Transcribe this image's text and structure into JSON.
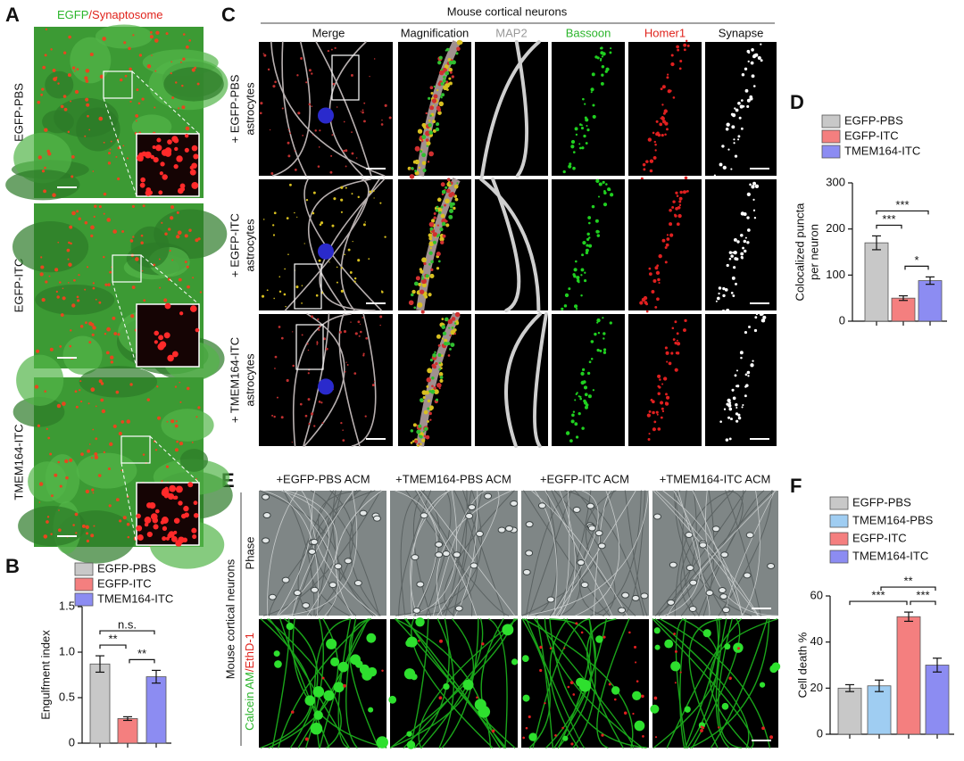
{
  "panel_a": {
    "label": "A",
    "title": [
      "EGFP",
      "/Synaptosome"
    ],
    "rows": [
      "EGFP-PBS",
      "EGFP-ITC",
      "TMEM164-ITC"
    ]
  },
  "panel_c": {
    "label": "C",
    "header": "Mouse cortical neurons",
    "columns": [
      "Merge",
      "Magnification",
      "MAP2",
      "Bassoon",
      "Homer1",
      "Synapse"
    ],
    "rows": [
      [
        "+ EGFP-PBS",
        "astrocytes"
      ],
      [
        "+ EGFP-ITC",
        "astrocytes"
      ],
      [
        "+ TMEM164-ITC",
        "astrocytes"
      ]
    ]
  },
  "panel_e": {
    "label": "E",
    "columns": [
      "+EGFP-PBS ACM",
      "+TMEM164-PBS ACM",
      "+EGFP-ITC ACM",
      "+TMEM164-ITC ACM"
    ],
    "rows": [
      "Phase",
      [
        "Calcein AM",
        "/EthD-1"
      ]
    ],
    "side_label": "Mouse cortical neurons"
  },
  "chart_data": [
    {
      "type": "bar",
      "panel": "B",
      "ylabel": [
        "Engulfment index"
      ],
      "categories": [
        "EGFP-PBS",
        "EGFP-ITC",
        "TMEM164-ITC"
      ],
      "values": [
        0.87,
        0.27,
        0.73
      ],
      "errors": [
        0.09,
        0.02,
        0.07
      ],
      "colors": [
        "#c8c8c8",
        "#f47f7f",
        "#8c8cf2"
      ],
      "ylim": [
        0,
        1.5
      ],
      "yticks": [
        0,
        0.5,
        {
          "value": 1,
          "label": "1.0"
        },
        1.5
      ],
      "comparisons": [
        {
          "label": "**",
          "pair": [
            "EGFP-PBS",
            "EGFP-ITC"
          ]
        },
        {
          "label": "**",
          "pair": [
            "EGFP-ITC",
            "TMEM164-ITC"
          ]
        },
        {
          "label": "n.s.",
          "pair": [
            "EGFP-PBS",
            "TMEM164-ITC"
          ]
        }
      ]
    },
    {
      "type": "bar",
      "panel": "D",
      "ylabel": [
        "Colocalized puncta",
        "per neuron"
      ],
      "categories": [
        "EGFP-PBS",
        "EGFP-ITC",
        "TMEM164-ITC"
      ],
      "values": [
        170,
        50,
        88
      ],
      "errors": [
        15,
        5,
        8
      ],
      "colors": [
        "#c8c8c8",
        "#f47f7f",
        "#8c8cf2"
      ],
      "ylim": [
        0,
        300
      ],
      "yticks": [
        0,
        100,
        200,
        300
      ],
      "comparisons": [
        {
          "label": "***",
          "pair": [
            "EGFP-PBS",
            "EGFP-ITC"
          ]
        },
        {
          "label": "*",
          "pair": [
            "EGFP-ITC",
            "TMEM164-ITC"
          ]
        },
        {
          "label": "***",
          "pair": [
            "EGFP-PBS",
            "TMEM164-ITC"
          ]
        }
      ]
    },
    {
      "type": "bar",
      "panel": "F",
      "ylabel": [
        "Cell death %"
      ],
      "categories": [
        "EGFP-PBS",
        "TMEM164-PBS",
        "EGFP-ITC",
        "TMEM164-ITC"
      ],
      "values": [
        20,
        21,
        51,
        30
      ],
      "errors": [
        1.5,
        2.5,
        2,
        3
      ],
      "colors": [
        "#c8c8c8",
        "#9fcdf2",
        "#f47f7f",
        "#8c8cf2"
      ],
      "ylim": [
        0,
        60
      ],
      "yticks": [
        0,
        20,
        40,
        60
      ],
      "comparisons": [
        {
          "label": "***",
          "pair": [
            "EGFP-ITC",
            "TMEM164-ITC"
          ]
        },
        {
          "label": "***",
          "pair": [
            "EGFP-PBS",
            "EGFP-ITC"
          ]
        },
        {
          "label": "**",
          "pair": [
            "TMEM164-PBS",
            "TMEM164-ITC"
          ]
        }
      ]
    }
  ]
}
